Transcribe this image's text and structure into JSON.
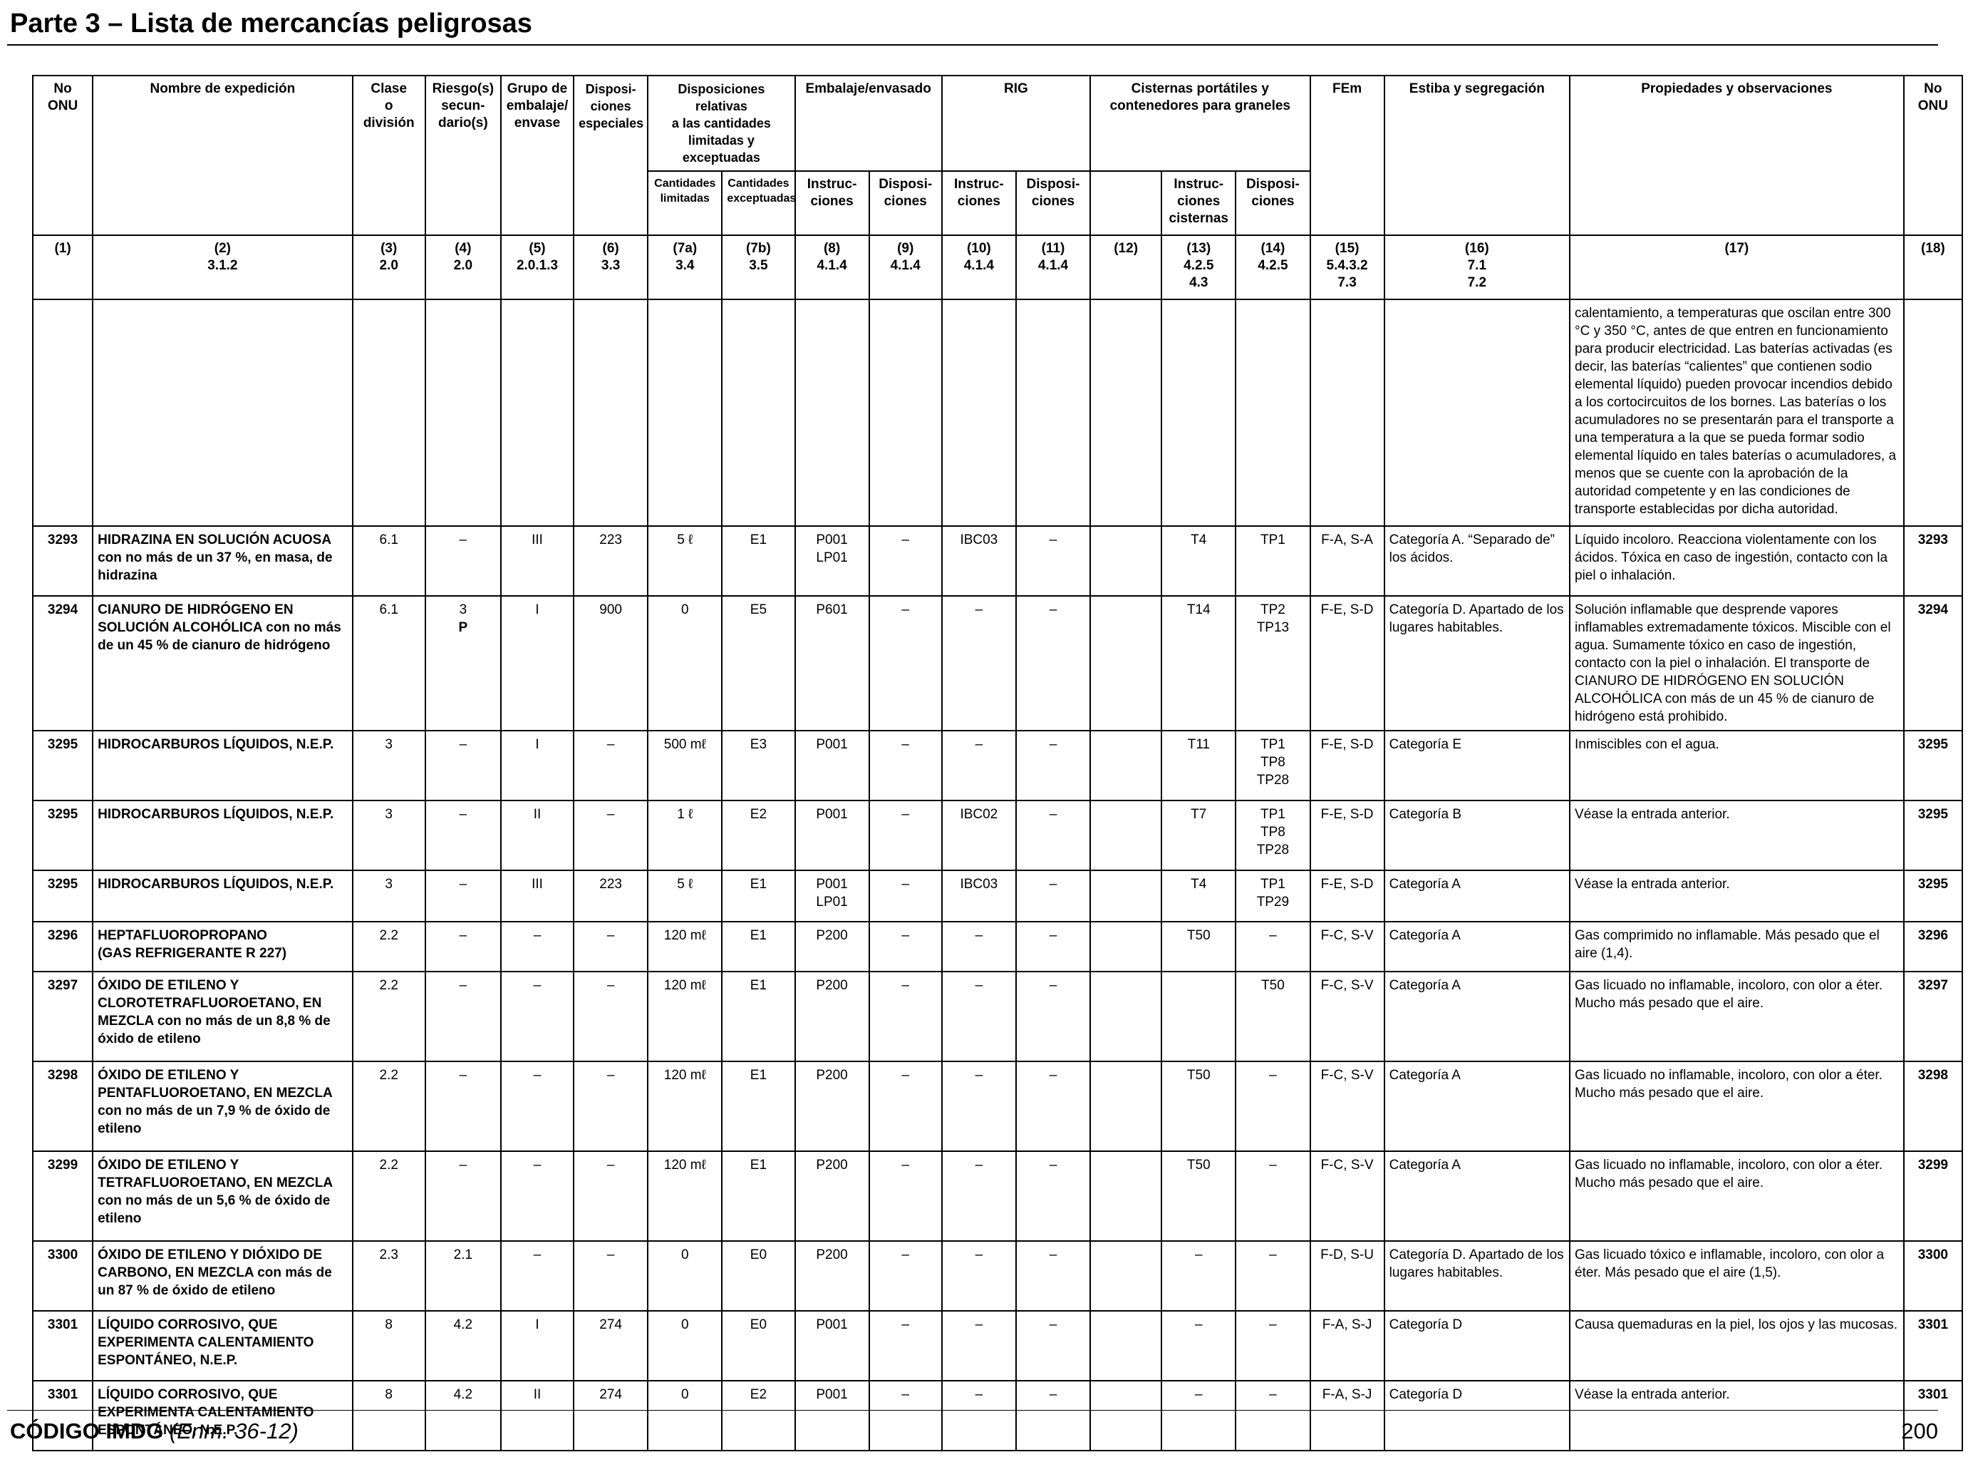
{
  "page": {
    "title": "Parte 3 – Lista de mercancías peligrosas",
    "footer_code": "CÓDIGO IMDG",
    "footer_amend": "(Enm. 36-12)",
    "page_number": "200"
  },
  "headers": {
    "no_onu": "No\nONU",
    "nombre": "Nombre de expedición",
    "clase": "Clase\no\ndivisión",
    "riesgo": "Riesgo(s)\nsecun-\ndario(s)",
    "grupo": "Grupo de\nembalaje/\nenvase",
    "dispos_esp": "Disposi-\nciones\nespeciales",
    "cantidades": "Disposiciones relativas\na las cantidades\nlimitadas y exceptuadas",
    "cant_lim": "Cantidades\nlimitadas",
    "cant_exc": "Cantidades\nexceptuadas",
    "embalaje": "Embalaje/envasado",
    "instrucciones": "Instruc-\nciones",
    "disposiciones": "Disposi-\nciones",
    "rig": "RIG",
    "cisternas": "Cisternas portátiles y\ncontenedores para graneles",
    "instr_cisternas": "Instruc-\nciones\ncisternas",
    "fem": "FEm",
    "estiba": "Estiba y segregación",
    "propiedades": "Propiedades y observaciones",
    "no_onu_end": "No\nONU"
  },
  "column_numbers": [
    "(1)",
    "(2)\n3.1.2",
    "(3)\n2.0",
    "(4)\n2.0",
    "(5)\n2.0.1.3",
    "(6)\n3.3",
    "(7a)\n3.4",
    "(7b)\n3.5",
    "(8)\n4.1.4",
    "(9)\n4.1.4",
    "(10)\n4.1.4",
    "(11)\n4.1.4",
    "(12)",
    "(13)\n4.2.5\n4.3",
    "(14)\n4.2.5",
    "(15)\n5.4.3.2\n7.3",
    "(16)\n7.1\n7.2",
    "(17)",
    "(18)"
  ],
  "continuation_text": "calentamiento, a temperaturas que oscilan entre 300 °C y 350 °C, antes de que entren en funcionamiento para producir electricidad. Las baterías activadas (es decir, las baterías “calientes” que contienen sodio elemental líquido) pueden provocar incendios debido a los cortocircuitos de los bornes. Las baterías o los acumuladores no se presentarán para el transporte a una temperatura a la que se pueda formar sodio elemental líquido en tales baterías o acumuladores, a menos que se cuente con la aprobación de la autoridad competente y en las condiciones de transporte establecidas por dicha autoridad.",
  "rows": [
    {
      "un": "3293",
      "name_bold": "HIDRAZINA EN SOLUCIÓN ACUOSA",
      "name_rest": " con no más de un 37 %, en masa, de hidrazina",
      "clase": "6.1",
      "riesgo": "–",
      "grupo": "III",
      "esp": "223",
      "lim": "5 ℓ",
      "exc": "E1",
      "instr": "P001\nLP01",
      "disp": "–",
      "rig_i": "IBC03",
      "rig_d": "–",
      "c12": "",
      "tank_i": "T4",
      "tank_d": "TP1",
      "fem": "F-A, S-A",
      "estiba": "Categoría A. “Separado de” los ácidos.",
      "obs": "Líquido incoloro. Reacciona violentamente con los ácidos. Tóxica en caso de ingestión, contacto con la piel o inhalación.",
      "un2": "3293"
    },
    {
      "un": "3294",
      "name_bold": "CIANURO DE HIDRÓGENO EN SOLUCIÓN ALCOHÓLICA",
      "name_rest": " con no más de un 45 % de cianuro de hidrógeno",
      "clase": "6.1",
      "riesgo": "3",
      "riesgo_p": "P",
      "grupo": "I",
      "esp": "900",
      "lim": "0",
      "exc": "E5",
      "instr": "P601",
      "disp": "–",
      "rig_i": "–",
      "rig_d": "–",
      "c12": "",
      "tank_i": "T14",
      "tank_d": "TP2\nTP13",
      "fem": "F-E, S-D",
      "estiba": "Categoría D. Apartado de los lugares habitables.",
      "obs": "Solución inflamable que desprende vapores inflamables extremadamente tóxicos. Miscible con el agua. Sumamente tóxico en caso de ingestión, contacto con la piel o inhalación. El transporte de CIANURO DE HIDRÓGENO EN SOLUCIÓN ALCOHÓLICA con más de un 45 % de cianuro de hidrógeno está prohibido.",
      "un2": "3294"
    },
    {
      "un": "3295",
      "name_bold": "HIDROCARBUROS LÍQUIDOS, N.E.P.",
      "name_rest": "",
      "clase": "3",
      "riesgo": "–",
      "grupo": "I",
      "esp": "–",
      "lim": "500 mℓ",
      "exc": "E3",
      "instr": "P001",
      "disp": "–",
      "rig_i": "–",
      "rig_d": "–",
      "c12": "",
      "tank_i": "T11",
      "tank_d": "TP1\nTP8\nTP28",
      "fem": "F-E, S-D",
      "estiba": "Categoría E",
      "obs": "Inmiscibles con el agua.",
      "un2": "3295"
    },
    {
      "un": "3295",
      "name_bold": "HIDROCARBUROS LÍQUIDOS, N.E.P.",
      "name_rest": "",
      "clase": "3",
      "riesgo": "–",
      "grupo": "II",
      "esp": "–",
      "lim": "1 ℓ",
      "exc": "E2",
      "instr": "P001",
      "disp": "–",
      "rig_i": "IBC02",
      "rig_d": "–",
      "c12": "",
      "tank_i": "T7",
      "tank_d": "TP1\nTP8\nTP28",
      "fem": "F-E, S-D",
      "estiba": "Categoría B",
      "obs": "Véase la entrada anterior.",
      "un2": "3295"
    },
    {
      "un": "3295",
      "name_bold": "HIDROCARBUROS LÍQUIDOS, N.E.P.",
      "name_rest": "",
      "clase": "3",
      "riesgo": "–",
      "grupo": "III",
      "esp": "223",
      "lim": "5 ℓ",
      "exc": "E1",
      "instr": "P001\nLP01",
      "disp": "–",
      "rig_i": "IBC03",
      "rig_d": "–",
      "c12": "",
      "tank_i": "T4",
      "tank_d": "TP1\nTP29",
      "fem": "F-E, S-D",
      "estiba": "Categoría A",
      "obs": "Véase la entrada anterior.",
      "un2": "3295"
    },
    {
      "un": "3296",
      "name_bold": "HEPTAFLUOROPROPANO\n(GAS REFRIGERANTE R 227)",
      "name_rest": "",
      "clase": "2.2",
      "riesgo": "–",
      "grupo": "–",
      "esp": "–",
      "lim": "120 mℓ",
      "exc": "E1",
      "instr": "P200",
      "disp": "–",
      "rig_i": "–",
      "rig_d": "–",
      "c12": "",
      "tank_i": "T50",
      "tank_d": "–",
      "fem": "F-C, S-V",
      "estiba": "Categoría A",
      "obs": "Gas comprimido no inflamable. Más pesado que el aire (1,4).",
      "un2": "3296"
    },
    {
      "un": "3297",
      "name_bold": "ÓXIDO DE ETILENO Y CLOROTETRAFLUOROETANO, EN MEZCLA",
      "name_rest": " con no más de un 8,8 % de óxido de etileno",
      "clase": "2.2",
      "riesgo": "–",
      "grupo": "–",
      "esp": "–",
      "lim": "120 mℓ",
      "exc": "E1",
      "instr": "P200",
      "disp": "–",
      "rig_i": "–",
      "rig_d": "–",
      "c12": "",
      "tank_i": "",
      "tank_d": "T50",
      "fem": "F-C, S-V",
      "estiba": "Categoría A",
      "obs": "Gas licuado no inflamable, incoloro, con olor a éter. Mucho más pesado que el aire.",
      "un2": "3297"
    },
    {
      "un": "3298",
      "name_bold": "ÓXIDO DE ETILENO Y PENTAFLUOROETANO, EN MEZCLA",
      "name_rest": " con no más de un 7,9 % de óxido de etileno",
      "clase": "2.2",
      "riesgo": "–",
      "grupo": "–",
      "esp": "–",
      "lim": "120 mℓ",
      "exc": "E1",
      "instr": "P200",
      "disp": "–",
      "rig_i": "–",
      "rig_d": "–",
      "c12": "",
      "tank_i": "T50",
      "tank_d": "–",
      "fem": "F-C, S-V",
      "estiba": "Categoría A",
      "obs": "Gas licuado no inflamable, incoloro, con olor a éter. Mucho más pesado que el aire.",
      "un2": "3298"
    },
    {
      "un": "3299",
      "name_bold": "ÓXIDO DE ETILENO Y TETRAFLUOROETANO, EN MEZCLA",
      "name_rest": " con no más de un 5,6 % de óxido de etileno",
      "clase": "2.2",
      "riesgo": "–",
      "grupo": "–",
      "esp": "–",
      "lim": "120 mℓ",
      "exc": "E1",
      "instr": "P200",
      "disp": "–",
      "rig_i": "–",
      "rig_d": "–",
      "c12": "",
      "tank_i": "T50",
      "tank_d": "–",
      "fem": "F-C, S-V",
      "estiba": "Categoría A",
      "obs": "Gas licuado no inflamable, incoloro, con olor a éter. Mucho más pesado que el aire.",
      "un2": "3299"
    },
    {
      "un": "3300",
      "name_bold": "ÓXIDO DE ETILENO Y DIÓXIDO DE CARBONO, EN MEZCLA",
      "name_rest": " con más de un 87 % de óxido de etileno",
      "clase": "2.3",
      "riesgo": "2.1",
      "grupo": "–",
      "esp": "–",
      "lim": "0",
      "exc": "E0",
      "instr": "P200",
      "disp": "–",
      "rig_i": "–",
      "rig_d": "–",
      "c12": "",
      "tank_i": "–",
      "tank_d": "–",
      "fem": "F-D, S-U",
      "estiba": "Categoría D. Apartado de los lugares habitables.",
      "obs": "Gas licuado tóxico e inflamable, incoloro, con olor a éter. Más pesado que el aire (1,5).",
      "un2": "3300"
    },
    {
      "un": "3301",
      "name_bold": "LÍQUIDO CORROSIVO, QUE EXPERIMENTA CALENTAMIENTO ESPONTÁNEO, N.E.P.",
      "name_rest": "",
      "clase": "8",
      "riesgo": "4.2",
      "grupo": "I",
      "esp": "274",
      "lim": "0",
      "exc": "E0",
      "instr": "P001",
      "disp": "–",
      "rig_i": "–",
      "rig_d": "–",
      "c12": "",
      "tank_i": "–",
      "tank_d": "–",
      "fem": "F-A, S-J",
      "estiba": "Categoría D",
      "obs": "Causa quemaduras en la piel, los ojos y las mucosas.",
      "un2": "3301"
    },
    {
      "un": "3301",
      "name_bold": "LÍQUIDO CORROSIVO, QUE EXPERIMENTA CALENTAMIENTO ESPONTÁNEO, N.E.P.",
      "name_rest": "",
      "clase": "8",
      "riesgo": "4.2",
      "grupo": "II",
      "esp": "274",
      "lim": "0",
      "exc": "E2",
      "instr": "P001",
      "disp": "–",
      "rig_i": "–",
      "rig_d": "–",
      "c12": "",
      "tank_i": "–",
      "tank_d": "–",
      "fem": "F-A, S-J",
      "estiba": "Categoría D",
      "obs": "Véase la entrada anterior.",
      "un2": "3301"
    }
  ]
}
